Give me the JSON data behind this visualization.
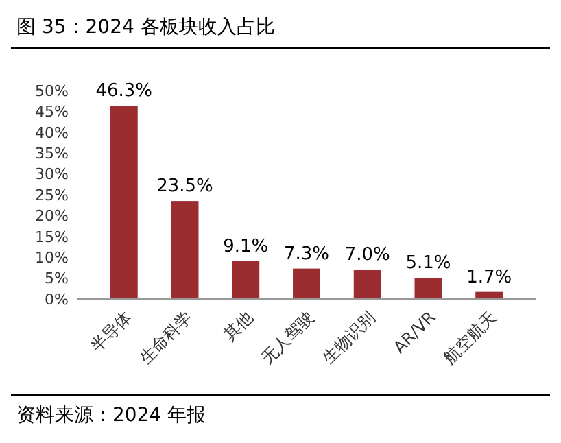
{
  "chart_data": {
    "type": "bar",
    "title": "图 35：2024 各板块收入占比",
    "categories": [
      "半导体",
      "生命科学",
      "其他",
      "无人驾驶",
      "生物识别",
      "AR/VR",
      "航空航天"
    ],
    "values": [
      46.3,
      23.5,
      9.1,
      7.3,
      7.0,
      5.1,
      1.7
    ],
    "value_labels": [
      "46.3%",
      "23.5%",
      "9.1%",
      "7.3%",
      "7.0%",
      "5.1%",
      "1.7%"
    ],
    "color": "#9b2d30",
    "ylim": [
      0,
      50
    ],
    "yticks": [
      {
        "value": 0,
        "label": "0%"
      },
      {
        "value": 5,
        "label": "5%"
      },
      {
        "value": 10,
        "label": "10%"
      },
      {
        "value": 15,
        "label": "15%"
      },
      {
        "value": 20,
        "label": "20%"
      },
      {
        "value": 25,
        "label": "25%"
      },
      {
        "value": 30,
        "label": "30%"
      },
      {
        "value": 35,
        "label": "35%"
      },
      {
        "value": 40,
        "label": "40%"
      },
      {
        "value": 45,
        "label": "45%"
      },
      {
        "value": 50,
        "label": "50%"
      }
    ],
    "grid": false,
    "annotations": [
      "资料来源：2024 年报"
    ]
  }
}
